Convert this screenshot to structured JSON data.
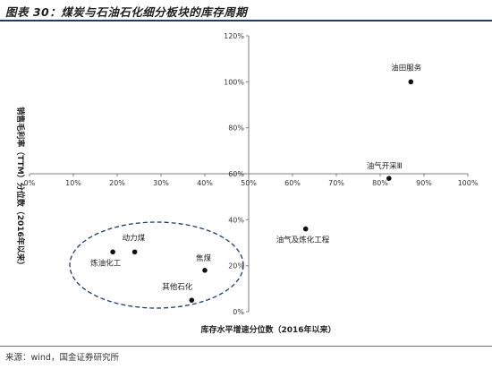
{
  "figure": {
    "title": "图表 30：煤炭与石油石化细分板块的库存周期",
    "source": "来源：wind，国金证券研究所"
  },
  "chart_data": {
    "type": "scatter",
    "xlabel": "库存水平增速分位数（2016年以来）",
    "ylabel": "销售毛利率（TTM）分位数（2016年以来）",
    "xlim": [
      0,
      100
    ],
    "ylim": [
      0,
      120
    ],
    "x_ticks": [
      "0%",
      "10%",
      "20%",
      "30%",
      "40%",
      "50%",
      "60%",
      "70%",
      "80%",
      "90%",
      "100%"
    ],
    "y_ticks": [
      "0%",
      "20%",
      "40%",
      "60%",
      "80%",
      "100%",
      "120%"
    ],
    "axis_cross": {
      "x": 50,
      "y": 60
    },
    "grid": false,
    "points": [
      {
        "label": "油田服务",
        "x": 87,
        "y": 100
      },
      {
        "label": "油气开采Ⅲ",
        "x": 82,
        "y": 58
      },
      {
        "label": "油气及炼化工程",
        "x": 63,
        "y": 36
      },
      {
        "label": "动力煤",
        "x": 24,
        "y": 26
      },
      {
        "label": "炼油化工",
        "x": 19,
        "y": 26
      },
      {
        "label": "焦煤",
        "x": 40,
        "y": 18
      },
      {
        "label": "其他石化",
        "x": 37,
        "y": 5
      }
    ],
    "annotations": [
      {
        "type": "dashed-ellipse",
        "around": [
          "炼油化工",
          "动力煤",
          "焦煤",
          "其他石化"
        ]
      }
    ]
  }
}
